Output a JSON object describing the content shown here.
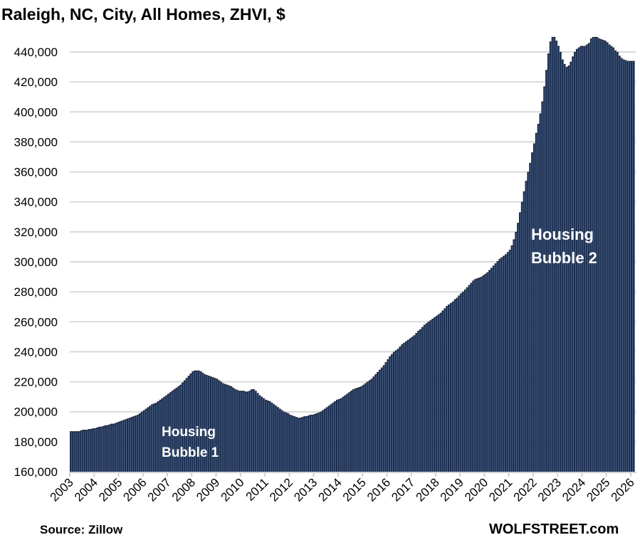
{
  "chart_data": {
    "type": "bar",
    "title": "Raleigh, NC, City, All Homes, ZHVI, $",
    "xlabel": "",
    "ylabel": "",
    "frequency": "monthly",
    "start": "2003-01",
    "end": "2026-02",
    "ylim": [
      160000,
      450000
    ],
    "yticks": [
      160000,
      180000,
      200000,
      220000,
      240000,
      260000,
      280000,
      300000,
      320000,
      340000,
      360000,
      380000,
      400000,
      420000,
      440000
    ],
    "ytick_labels": [
      "160,000",
      "180,000",
      "200,000",
      "220,000",
      "240,000",
      "260,000",
      "280,000",
      "300,000",
      "320,000",
      "340,000",
      "360,000",
      "380,000",
      "400,000",
      "420,000",
      "440,000"
    ],
    "xtick_labels": [
      "2003",
      "2004",
      "2005",
      "2006",
      "2007",
      "2008",
      "2009",
      "2010",
      "2011",
      "2012",
      "2013",
      "2014",
      "2015",
      "2016",
      "2017",
      "2018",
      "2019",
      "2020",
      "2021",
      "2022",
      "2023",
      "2024",
      "2025",
      "2026"
    ],
    "grid": true,
    "legend": "none",
    "values": [
      187000,
      187000,
      187000,
      187000,
      187000,
      187500,
      188000,
      188000,
      188000,
      188500,
      188500,
      189000,
      189000,
      189500,
      190000,
      190000,
      190500,
      191000,
      191000,
      191500,
      192000,
      192000,
      192500,
      193000,
      193500,
      194000,
      194500,
      195000,
      195500,
      196000,
      196500,
      197000,
      197500,
      198000,
      199000,
      200000,
      201000,
      202000,
      203000,
      204000,
      205000,
      205500,
      206000,
      207000,
      208000,
      209000,
      210000,
      211000,
      212000,
      213000,
      214000,
      215000,
      216000,
      217000,
      218000,
      219500,
      221000,
      222500,
      224000,
      225500,
      227000,
      227500,
      227500,
      227500,
      227000,
      226000,
      225000,
      224500,
      224000,
      223500,
      223000,
      222500,
      222000,
      221000,
      220000,
      219000,
      218500,
      218000,
      217500,
      217000,
      216000,
      215000,
      214500,
      214000,
      214000,
      214000,
      213500,
      213500,
      214000,
      215000,
      215000,
      214000,
      212500,
      211000,
      210000,
      209000,
      208000,
      207500,
      207000,
      206000,
      205000,
      204000,
      203000,
      202000,
      201000,
      200000,
      199500,
      199000,
      198000,
      197500,
      197000,
      196500,
      196000,
      196000,
      196500,
      197000,
      197000,
      197500,
      198000,
      198000,
      198500,
      199000,
      199500,
      200000,
      201000,
      202000,
      203000,
      204000,
      205000,
      206000,
      207000,
      208000,
      208500,
      209000,
      210000,
      211000,
      212000,
      213000,
      214000,
      215000,
      215500,
      216000,
      216500,
      217000,
      218000,
      219000,
      220000,
      221000,
      222000,
      223500,
      225000,
      226500,
      228000,
      229500,
      231000,
      233000,
      235000,
      237000,
      238500,
      240000,
      241000,
      242000,
      243500,
      245000,
      246000,
      247000,
      248000,
      249000,
      250000,
      251000,
      252500,
      254000,
      255000,
      256500,
      258000,
      259000,
      260000,
      261000,
      262000,
      263000,
      264000,
      265000,
      266000,
      267500,
      269000,
      270500,
      271500,
      272500,
      273500,
      275000,
      276000,
      277500,
      279000,
      280000,
      281500,
      283000,
      284500,
      286000,
      287500,
      288500,
      289000,
      289500,
      290000,
      291000,
      292000,
      293000,
      294500,
      296000,
      297500,
      299000,
      300500,
      302000,
      303000,
      304000,
      305000,
      306500,
      308000,
      311000,
      315000,
      320000,
      326000,
      333000,
      340000,
      347000,
      354000,
      360000,
      366000,
      373000,
      379000,
      386000,
      392000,
      399000,
      407000,
      417000,
      428000,
      439000,
      447000,
      450000,
      450000,
      447500,
      444000,
      440000,
      435000,
      432000,
      430000,
      431000,
      433500,
      437000,
      440000,
      442000,
      443000,
      444000,
      444000,
      444000,
      445000,
      446000,
      449000,
      450000,
      450000,
      450000,
      449000,
      448500,
      448000,
      447500,
      446500,
      445000,
      444000,
      443000,
      441000,
      440000,
      437500,
      436000,
      435000,
      434500,
      434000,
      434000,
      434000,
      434000
    ],
    "annotations": [
      {
        "lines": [
          "Housing",
          "Bubble 1"
        ]
      },
      {
        "lines": [
          "Housing",
          "Bubble 2"
        ]
      }
    ]
  },
  "footer": {
    "source": "Source: Zillow",
    "brand": "WOLFSTREET.com"
  },
  "colors": {
    "bar_fill": "#222a3a",
    "bar_edge": "#3d6fc0",
    "grid": "#d9d9d9",
    "axis": "#d0d0d0"
  }
}
